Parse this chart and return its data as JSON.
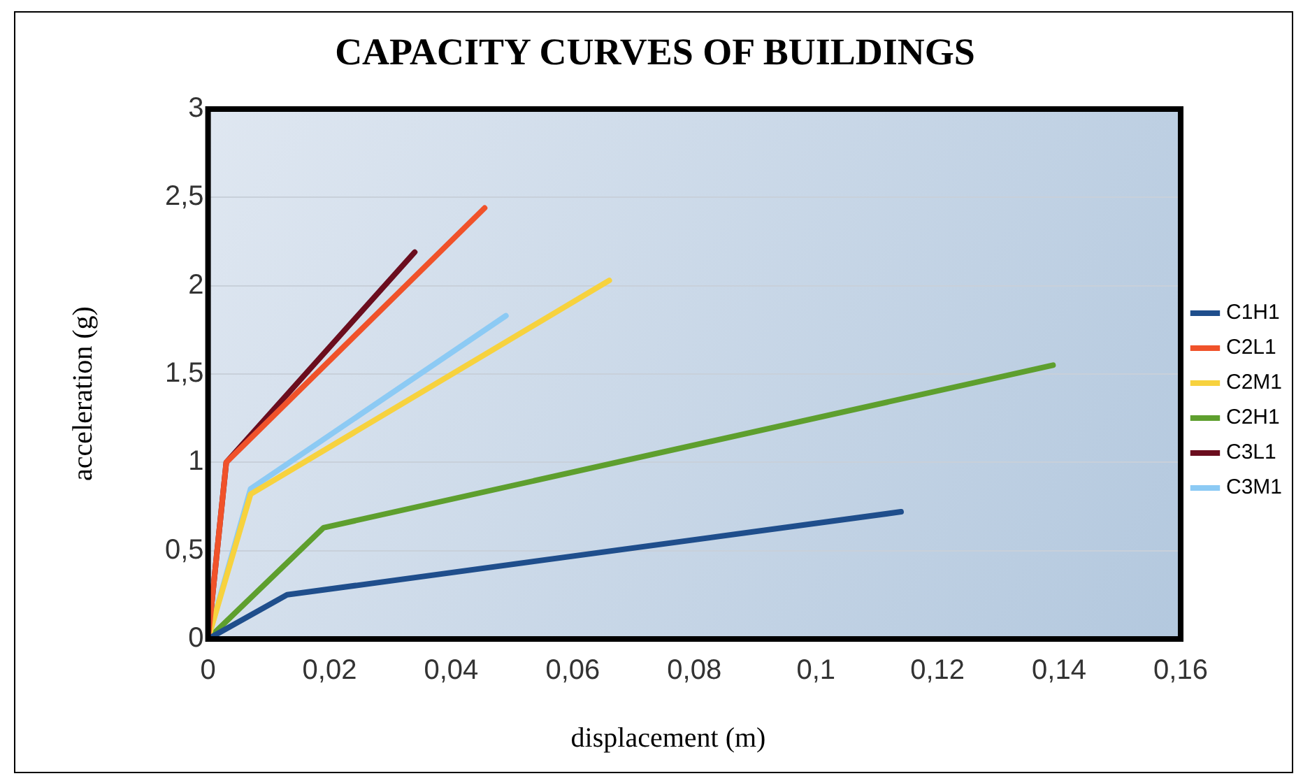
{
  "chart_data": {
    "type": "line",
    "title": "CAPACITY CURVES OF BUILDINGS",
    "xlabel": "displacement (m)",
    "ylabel": "acceleration (g)",
    "xlim": [
      0,
      0.16
    ],
    "ylim": [
      0,
      3
    ],
    "xticks": [
      0,
      {
        "value": 0.02,
        "label": "0,02"
      },
      {
        "value": 0.04,
        "label": "0,04"
      },
      {
        "value": 0.06,
        "label": "0,06"
      },
      {
        "value": 0.08,
        "label": "0,08"
      },
      {
        "value": 0.1,
        "label": "0,1"
      },
      {
        "value": 0.12,
        "label": "0,12"
      },
      {
        "value": 0.14,
        "label": "0,14"
      },
      {
        "value": 0.16,
        "label": "0,16"
      }
    ],
    "yticks": [
      0,
      {
        "value": 0.5,
        "label": "0,5"
      },
      1,
      {
        "value": 1.5,
        "label": "1,5"
      },
      2,
      {
        "value": 2.5,
        "label": "2,5"
      },
      3
    ],
    "grid": "y",
    "legend": "right",
    "marker": "none",
    "line_style": "solid",
    "series": [
      {
        "name": "C1H1",
        "color": "#1f4e8c",
        "x": [
          0,
          0.013,
          0.114
        ],
        "values": [
          0,
          0.25,
          0.72
        ]
      },
      {
        "name": "C2L1",
        "color": "#f0522a",
        "x": [
          0,
          0.003,
          0.0455
        ],
        "values": [
          0,
          1.0,
          2.44
        ]
      },
      {
        "name": "C2M1",
        "color": "#f7d23e",
        "x": [
          0,
          0.007,
          0.066
        ],
        "values": [
          0,
          0.82,
          2.03
        ]
      },
      {
        "name": "C2H1",
        "color": "#5e9f2e",
        "x": [
          0,
          0.019,
          0.139
        ],
        "values": [
          0,
          0.63,
          1.55
        ]
      },
      {
        "name": "C3L1",
        "color": "#6b0d1e",
        "x": [
          0,
          0.003,
          0.034
        ],
        "values": [
          0,
          1.0,
          2.19
        ]
      },
      {
        "name": "C3M1",
        "color": "#8ccaf4",
        "x": [
          0,
          0.007,
          0.049
        ],
        "values": [
          0,
          0.85,
          1.83
        ]
      }
    ]
  }
}
